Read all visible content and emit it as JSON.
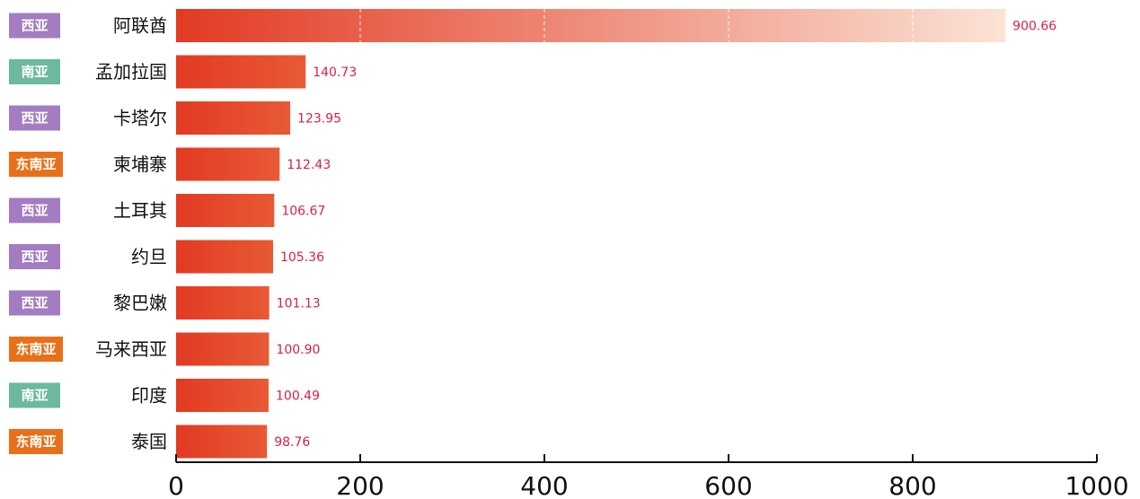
{
  "chart_data": {
    "type": "bar",
    "orientation": "horizontal",
    "categories": [
      "阿联酋",
      "孟加拉国",
      "卡塔尔",
      "柬埔寨",
      "土耳其",
      "约旦",
      "黎巴嫩",
      "马来西亚",
      "印度",
      "泰国"
    ],
    "regions": [
      "西亚",
      "南亚",
      "西亚",
      "东南亚",
      "西亚",
      "西亚",
      "西亚",
      "东南亚",
      "南亚",
      "东南亚"
    ],
    "values": [
      900.66,
      140.73,
      123.95,
      112.43,
      106.67,
      105.36,
      101.13,
      100.9,
      100.49,
      98.76
    ],
    "value_labels": [
      "900.66",
      "140.73",
      "123.95",
      "112.43",
      "106.67",
      "105.36",
      "101.13",
      "100.90",
      "100.49",
      "98.76"
    ],
    "xticks": [
      "0",
      "200",
      "400",
      "600",
      "800",
      "1000"
    ],
    "xlim": [
      0,
      1000
    ],
    "grid": "dashed vertical lines inside top bar",
    "colors": {
      "bar_start": "#e23a23",
      "bar_end": "#e85a35",
      "top_bar_end": "#fbe3d6",
      "value_text": "#d6204b",
      "region_西亚": "#a37cc1",
      "region_南亚": "#6cb9a0",
      "region_东南亚": "#e8701a"
    }
  }
}
